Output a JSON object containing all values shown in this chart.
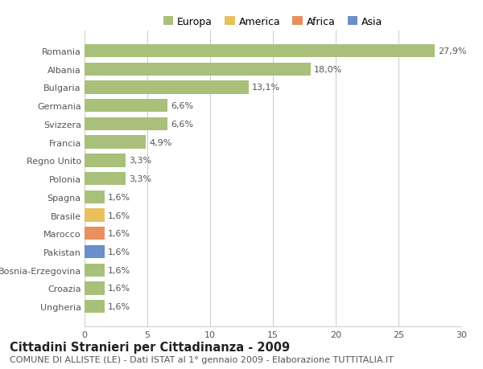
{
  "categories": [
    "Romania",
    "Albania",
    "Bulgaria",
    "Germania",
    "Svizzera",
    "Francia",
    "Regno Unito",
    "Polonia",
    "Spagna",
    "Brasile",
    "Marocco",
    "Pakistan",
    "Bosnia-Erzegovina",
    "Croazia",
    "Ungheria"
  ],
  "values": [
    27.9,
    18.0,
    13.1,
    6.6,
    6.6,
    4.9,
    3.3,
    3.3,
    1.6,
    1.6,
    1.6,
    1.6,
    1.6,
    1.6,
    1.6
  ],
  "labels": [
    "27,9%",
    "18,0%",
    "13,1%",
    "6,6%",
    "6,6%",
    "4,9%",
    "3,3%",
    "3,3%",
    "1,6%",
    "1,6%",
    "1,6%",
    "1,6%",
    "1,6%",
    "1,6%",
    "1,6%"
  ],
  "colors": [
    "#a8c07a",
    "#a8c07a",
    "#a8c07a",
    "#a8c07a",
    "#a8c07a",
    "#a8c07a",
    "#a8c07a",
    "#a8c07a",
    "#a8c07a",
    "#e8c060",
    "#e89060",
    "#6a8fca",
    "#a8c07a",
    "#a8c07a",
    "#a8c07a"
  ],
  "legend": [
    {
      "label": "Europa",
      "color": "#a8c07a"
    },
    {
      "label": "America",
      "color": "#e8c060"
    },
    {
      "label": "Africa",
      "color": "#e89060"
    },
    {
      "label": "Asia",
      "color": "#6a8fca"
    }
  ],
  "xlim": [
    0,
    30
  ],
  "xticks": [
    0,
    5,
    10,
    15,
    20,
    25,
    30
  ],
  "title": "Cittadini Stranieri per Cittadinanza - 2009",
  "subtitle": "COMUNE DI ALLISTE (LE) - Dati ISTAT al 1° gennaio 2009 - Elaborazione TUTTITALIA.IT",
  "background_color": "#ffffff",
  "grid_color": "#cccccc",
  "bar_height": 0.72,
  "label_fontsize": 8,
  "tick_fontsize": 8,
  "title_fontsize": 10.5,
  "subtitle_fontsize": 8
}
